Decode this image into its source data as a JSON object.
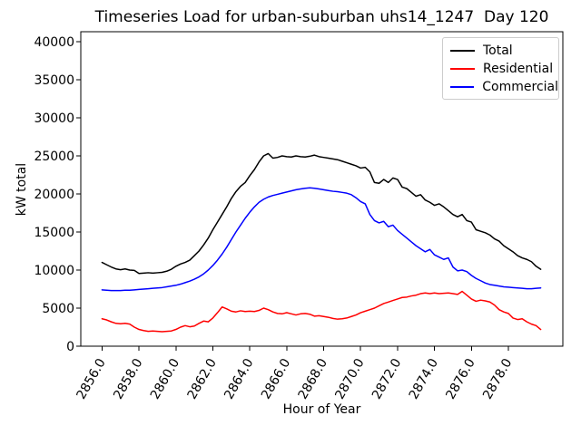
{
  "chart_data": {
    "type": "line",
    "title": "Timeseries Load for urban-suburban uhs14_1247  Day 120",
    "xlabel": "Hour of Year",
    "ylabel": "kW total",
    "xlim": [
      2854.85,
      2880.95
    ],
    "ylim": [
      0,
      41310
    ],
    "grid": false,
    "x_tick_rotation_deg": 60,
    "x_ticks": [
      2856.0,
      2858.0,
      2860.0,
      2862.0,
      2864.0,
      2866.0,
      2868.0,
      2870.0,
      2872.0,
      2874.0,
      2876.0,
      2878.0
    ],
    "x_tick_labels": [
      "2856.0",
      "2858.0",
      "2860.0",
      "2862.0",
      "2864.0",
      "2866.0",
      "2868.0",
      "2870.0",
      "2872.0",
      "2874.0",
      "2876.0",
      "2878.0"
    ],
    "y_ticks": [
      0,
      5000,
      10000,
      15000,
      20000,
      25000,
      30000,
      35000,
      40000
    ],
    "y_tick_labels": [
      "0",
      "5000",
      "10000",
      "15000",
      "20000",
      "25000",
      "30000",
      "35000",
      "40000"
    ],
    "legend": {
      "position": "upper right",
      "entries": [
        {
          "label": "Total",
          "color": "#000000"
        },
        {
          "label": "Residential",
          "color": "#ff0000"
        },
        {
          "label": "Commercial",
          "color": "#0000ff"
        }
      ]
    },
    "x": [
      2856.0,
      2856.25,
      2856.5,
      2856.75,
      2857.0,
      2857.25,
      2857.5,
      2857.75,
      2858.0,
      2858.25,
      2858.5,
      2858.75,
      2859.0,
      2859.25,
      2859.5,
      2859.75,
      2860.0,
      2860.25,
      2860.5,
      2860.75,
      2861.0,
      2861.25,
      2861.5,
      2861.75,
      2862.0,
      2862.25,
      2862.5,
      2862.75,
      2863.0,
      2863.25,
      2863.5,
      2863.75,
      2864.0,
      2864.25,
      2864.5,
      2864.75,
      2865.0,
      2865.25,
      2865.5,
      2865.75,
      2866.0,
      2866.25,
      2866.5,
      2866.75,
      2867.0,
      2867.25,
      2867.5,
      2867.75,
      2868.0,
      2868.25,
      2868.5,
      2868.75,
      2869.0,
      2869.25,
      2869.5,
      2869.75,
      2870.0,
      2870.25,
      2870.5,
      2870.75,
      2871.0,
      2871.25,
      2871.5,
      2871.75,
      2872.0,
      2872.25,
      2872.5,
      2872.75,
      2873.0,
      2873.25,
      2873.5,
      2873.75,
      2874.0,
      2874.25,
      2874.5,
      2874.75,
      2875.0,
      2875.25,
      2875.5,
      2875.75,
      2876.0,
      2876.25,
      2876.5,
      2876.75,
      2877.0,
      2877.25,
      2877.5,
      2877.75,
      2878.0,
      2878.25,
      2878.5,
      2878.75,
      2879.0,
      2879.25,
      2879.5,
      2879.75
    ],
    "series": [
      {
        "name": "Total",
        "color": "#000000",
        "values": [
          11000,
          10700,
          10400,
          10150,
          10050,
          10150,
          10000,
          9950,
          9550,
          9600,
          9650,
          9600,
          9650,
          9700,
          9850,
          10100,
          10500,
          10800,
          11000,
          11300,
          11900,
          12500,
          13300,
          14200,
          15300,
          16300,
          17300,
          18300,
          19400,
          20300,
          21000,
          21500,
          22400,
          23200,
          24200,
          25000,
          25300,
          24700,
          24800,
          25000,
          24900,
          24850,
          25000,
          24900,
          24850,
          24950,
          25100,
          24900,
          24800,
          24700,
          24600,
          24500,
          24300,
          24100,
          23900,
          23700,
          23400,
          23500,
          22900,
          21500,
          21400,
          21900,
          21500,
          22100,
          21900,
          20900,
          20700,
          20200,
          19700,
          19900,
          19200,
          18900,
          18500,
          18700,
          18300,
          17800,
          17300,
          17000,
          17300,
          16500,
          16300,
          15300,
          15100,
          14900,
          14600,
          14100,
          13800,
          13200,
          12800,
          12400,
          11900,
          11600,
          11400,
          11100,
          10500,
          10100
        ]
      },
      {
        "name": "Residential",
        "color": "#ff0000",
        "values": [
          3600,
          3450,
          3200,
          3000,
          2950,
          3000,
          2900,
          2500,
          2200,
          2050,
          1950,
          2000,
          1950,
          1900,
          1950,
          2000,
          2200,
          2500,
          2700,
          2550,
          2650,
          3000,
          3300,
          3200,
          3700,
          4400,
          5150,
          4900,
          4600,
          4500,
          4650,
          4550,
          4600,
          4550,
          4700,
          5000,
          4800,
          4500,
          4300,
          4250,
          4400,
          4250,
          4100,
          4250,
          4300,
          4200,
          3950,
          4000,
          3900,
          3800,
          3650,
          3550,
          3600,
          3700,
          3900,
          4100,
          4400,
          4600,
          4800,
          5000,
          5300,
          5600,
          5800,
          6000,
          6200,
          6400,
          6450,
          6600,
          6700,
          6900,
          7000,
          6900,
          7000,
          6900,
          6950,
          7000,
          6900,
          6800,
          7200,
          6700,
          6200,
          5900,
          6050,
          5950,
          5800,
          5400,
          4800,
          4500,
          4300,
          3700,
          3500,
          3600,
          3200,
          2900,
          2700,
          2200
        ]
      },
      {
        "name": "Commercial",
        "color": "#0000ff",
        "values": [
          7400,
          7350,
          7300,
          7300,
          7300,
          7350,
          7350,
          7400,
          7450,
          7500,
          7550,
          7600,
          7650,
          7700,
          7800,
          7900,
          8000,
          8150,
          8350,
          8550,
          8800,
          9100,
          9500,
          10000,
          10600,
          11300,
          12100,
          13000,
          14000,
          15000,
          15900,
          16800,
          17600,
          18300,
          18900,
          19300,
          19600,
          19800,
          19950,
          20100,
          20250,
          20400,
          20550,
          20650,
          20750,
          20800,
          20750,
          20650,
          20550,
          20450,
          20350,
          20300,
          20200,
          20100,
          19900,
          19500,
          19000,
          18700,
          17300,
          16500,
          16200,
          16400,
          15700,
          15900,
          15200,
          14700,
          14200,
          13700,
          13200,
          12800,
          12400,
          12700,
          12000,
          11700,
          11400,
          11600,
          10400,
          9900,
          10000,
          9800,
          9300,
          8900,
          8600,
          8300,
          8100,
          8000,
          7900,
          7800,
          7750,
          7700,
          7650,
          7600,
          7550,
          7550,
          7600,
          7650
        ]
      }
    ]
  }
}
